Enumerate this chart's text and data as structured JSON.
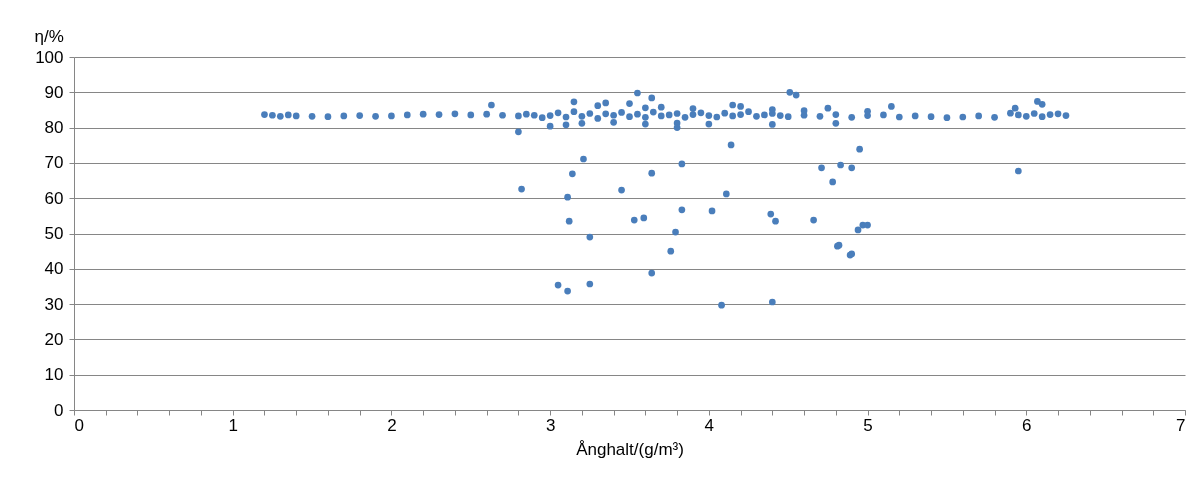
{
  "chart_data": {
    "type": "scatter",
    "xlabel": "Ånghalt/(g/m³)",
    "ylabel": "η/%",
    "xlim": [
      0,
      7
    ],
    "ylim": [
      0,
      100
    ],
    "xticks": [
      0,
      {
        "value": 0.2,
        "label": null
      },
      {
        "value": 0.4,
        "label": null
      },
      {
        "value": 0.6,
        "label": null
      },
      {
        "value": 0.8,
        "label": null
      },
      1,
      {
        "value": 1.2,
        "label": null
      },
      {
        "value": 1.4,
        "label": null
      },
      {
        "value": 1.6,
        "label": null
      },
      {
        "value": 1.8,
        "label": null
      },
      2,
      {
        "value": 2.2,
        "label": null
      },
      {
        "value": 2.4,
        "label": null
      },
      {
        "value": 2.6,
        "label": null
      },
      {
        "value": 2.8,
        "label": null
      },
      3,
      {
        "value": 3.2,
        "label": null
      },
      {
        "value": 3.4,
        "label": null
      },
      {
        "value": 3.6,
        "label": null
      },
      {
        "value": 3.8,
        "label": null
      },
      4,
      {
        "value": 4.2,
        "label": null
      },
      {
        "value": 4.4,
        "label": null
      },
      {
        "value": 4.6,
        "label": null
      },
      {
        "value": 4.8,
        "label": null
      },
      5,
      {
        "value": 5.2,
        "label": null
      },
      {
        "value": 5.4,
        "label": null
      },
      {
        "value": 5.6,
        "label": null
      },
      {
        "value": 5.8,
        "label": null
      },
      6,
      {
        "value": 6.2,
        "label": null
      },
      {
        "value": 6.4,
        "label": null
      },
      {
        "value": 6.6,
        "label": null
      },
      {
        "value": 6.8,
        "label": null
      },
      7
    ],
    "yticks": [
      0,
      10,
      20,
      30,
      40,
      50,
      60,
      70,
      80,
      90,
      100
    ],
    "grid": "y",
    "marker": "circle",
    "series": [
      {
        "color": "#4a7ebb",
        "x": [
          1.2,
          1.25,
          1.3,
          1.35,
          1.4,
          1.5,
          1.6,
          1.7,
          1.8,
          1.9,
          2.0,
          2.1,
          2.2,
          2.3,
          2.4,
          2.5,
          2.6,
          2.7,
          2.8,
          2.85,
          2.9,
          2.95,
          3.0,
          3.05,
          3.1,
          3.15,
          3.2,
          3.25,
          3.3,
          3.35,
          3.4,
          3.45,
          3.5,
          3.55,
          3.6,
          3.65,
          3.7,
          3.75,
          3.8,
          3.85,
          3.9,
          3.95,
          4.0,
          4.05,
          4.1,
          4.15,
          4.2,
          4.25,
          4.3,
          4.35,
          4.4,
          4.45,
          4.5,
          4.6,
          4.7,
          4.8,
          4.9,
          5.0,
          5.1,
          5.2,
          5.3,
          5.4,
          5.5,
          5.6,
          5.7,
          5.8,
          5.9,
          5.95,
          6.0,
          6.05,
          6.1,
          6.15,
          6.2,
          6.25,
          3.0,
          3.1,
          3.2,
          3.3,
          3.4,
          3.5,
          3.6,
          3.7,
          3.8,
          3.9,
          4.0,
          4.2,
          4.4,
          4.6,
          4.8,
          5.0,
          3.15,
          3.35,
          3.6,
          3.8,
          4.15,
          4.4,
          4.75,
          5.15,
          5.93,
          6.07,
          6.1,
          2.63,
          2.8,
          2.82,
          3.11,
          3.14,
          3.21,
          3.12,
          3.25,
          3.45,
          3.53,
          3.59,
          3.64,
          3.83,
          3.83,
          3.79,
          3.76,
          4.02,
          4.11,
          4.14,
          4.39,
          4.42,
          4.66,
          4.71,
          4.78,
          4.83,
          4.9,
          4.95,
          4.81,
          4.89,
          4.94,
          4.97,
          5.0,
          5.95,
          3.55,
          4.51,
          4.55,
          3.64,
          3.05,
          3.11,
          3.25,
          3.64,
          4.08,
          4.4,
          4.82,
          4.9
        ],
        "values": [
          83.7,
          83.5,
          83.2,
          83.6,
          83.3,
          83.2,
          83.1,
          83.3,
          83.4,
          83.2,
          83.3,
          83.6,
          83.8,
          83.7,
          83.9,
          83.6,
          83.8,
          83.5,
          83.3,
          83.8,
          83.5,
          82.8,
          83.4,
          84.2,
          83.0,
          84.5,
          83.2,
          84.0,
          82.6,
          83.9,
          83.5,
          84.3,
          83.1,
          83.8,
          82.9,
          84.4,
          83.3,
          83.6,
          84.0,
          82.9,
          83.7,
          84.2,
          83.4,
          83.0,
          84.1,
          83.3,
          83.7,
          84.5,
          83.2,
          83.6,
          84.0,
          83.4,
          83.1,
          83.5,
          83.2,
          83.7,
          82.9,
          83.4,
          83.6,
          83.0,
          83.3,
          83.1,
          82.8,
          83.0,
          83.3,
          82.9,
          84.1,
          83.6,
          83.2,
          84.0,
          83.1,
          83.7,
          83.9,
          83.4,
          80.4,
          80.8,
          81.2,
          86.2,
          81.5,
          86.8,
          81.0,
          85.8,
          81.3,
          85.4,
          81.0,
          86.0,
          80.9,
          84.8,
          81.2,
          84.6,
          87.3,
          87.0,
          85.6,
          80.0,
          86.4,
          85.1,
          85.5,
          86.0,
          85.5,
          87.4,
          86.6,
          86.4,
          78.8,
          62.6,
          60.3,
          66.9,
          71.1,
          53.5,
          49.0,
          62.3,
          53.8,
          54.4,
          67.1,
          69.7,
          56.7,
          50.4,
          45.0,
          56.4,
          61.2,
          75.1,
          55.5,
          53.5,
          53.8,
          68.6,
          64.6,
          69.4,
          68.6,
          73.9,
          46.4,
          43.9,
          51.0,
          52.4,
          52.4,
          67.7,
          89.8,
          90.0,
          89.2,
          88.4,
          35.4,
          33.7,
          35.7,
          38.8,
          29.7,
          30.6,
          46.7,
          44.2
        ]
      }
    ]
  }
}
